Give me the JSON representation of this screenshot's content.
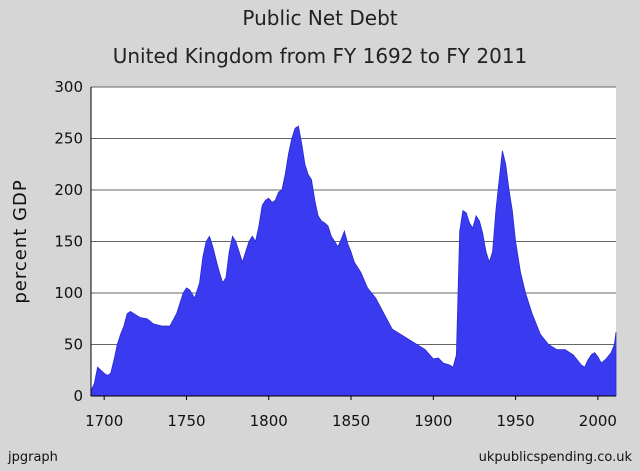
{
  "title": "Public Net Debt",
  "subtitle": "United Kingdom from FY 1692 to FY 2011",
  "footer_left": "jpgraph",
  "footer_right": "ukpublicspending.co.uk",
  "colors": {
    "fill": "#3a3af0",
    "background": "#d6d6d6",
    "plot_bg": "#ffffff",
    "grid": "#666666"
  },
  "chart_data": {
    "type": "area",
    "title": "Public Net Debt",
    "subtitle": "United Kingdom from FY 1692 to FY 2011",
    "xlabel": "",
    "ylabel": "percent GDP",
    "xlim": [
      1692,
      2011
    ],
    "ylim": [
      0,
      300
    ],
    "x_ticks": [
      1700,
      1750,
      1800,
      1850,
      1900,
      1950,
      2000
    ],
    "y_ticks": [
      0,
      50,
      100,
      150,
      200,
      250,
      300
    ],
    "grid": true,
    "series": [
      {
        "x": [
          1692,
          1694,
          1696,
          1698,
          1700,
          1702,
          1704,
          1706,
          1708,
          1710,
          1712,
          1714,
          1716,
          1718,
          1720,
          1722,
          1726,
          1730,
          1735,
          1740,
          1744,
          1748,
          1750,
          1752,
          1755,
          1758,
          1760,
          1762,
          1764,
          1766,
          1768,
          1770,
          1772,
          1774,
          1776,
          1778,
          1780,
          1782,
          1784,
          1786,
          1788,
          1790,
          1792,
          1794,
          1796,
          1798,
          1800,
          1802,
          1804,
          1806,
          1808,
          1810,
          1812,
          1814,
          1816,
          1818,
          1820,
          1822,
          1824,
          1826,
          1828,
          1830,
          1832,
          1834,
          1836,
          1838,
          1840,
          1842,
          1844,
          1846,
          1848,
          1850,
          1852,
          1854,
          1856,
          1860,
          1865,
          1870,
          1875,
          1880,
          1885,
          1890,
          1895,
          1900,
          1903,
          1906,
          1910,
          1912,
          1914,
          1916,
          1918,
          1920,
          1922,
          1924,
          1926,
          1928,
          1930,
          1932,
          1934,
          1936,
          1938,
          1940,
          1942,
          1944,
          1946,
          1948,
          1950,
          1953,
          1956,
          1960,
          1965,
          1970,
          1975,
          1980,
          1985,
          1990,
          1992,
          1994,
          1996,
          1998,
          2000,
          2002,
          2005,
          2008,
          2010,
          2011
        ],
        "y": [
          5,
          12,
          28,
          25,
          22,
          20,
          22,
          35,
          50,
          60,
          68,
          80,
          82,
          80,
          78,
          76,
          75,
          70,
          68,
          68,
          80,
          100,
          105,
          103,
          95,
          110,
          135,
          150,
          155,
          145,
          132,
          120,
          110,
          115,
          140,
          155,
          150,
          140,
          130,
          140,
          150,
          155,
          150,
          165,
          185,
          190,
          192,
          188,
          190,
          198,
          200,
          215,
          235,
          250,
          260,
          262,
          245,
          225,
          215,
          210,
          190,
          175,
          170,
          168,
          165,
          155,
          150,
          145,
          152,
          160,
          148,
          140,
          130,
          125,
          120,
          105,
          95,
          80,
          65,
          60,
          55,
          50,
          45,
          36,
          37,
          32,
          30,
          28,
          40,
          160,
          180,
          178,
          168,
          163,
          175,
          170,
          158,
          140,
          130,
          140,
          180,
          210,
          238,
          225,
          200,
          180,
          150,
          120,
          100,
          80,
          60,
          50,
          45,
          45,
          40,
          30,
          28,
          35,
          40,
          42,
          38,
          32,
          36,
          42,
          50,
          62
        ]
      }
    ]
  }
}
